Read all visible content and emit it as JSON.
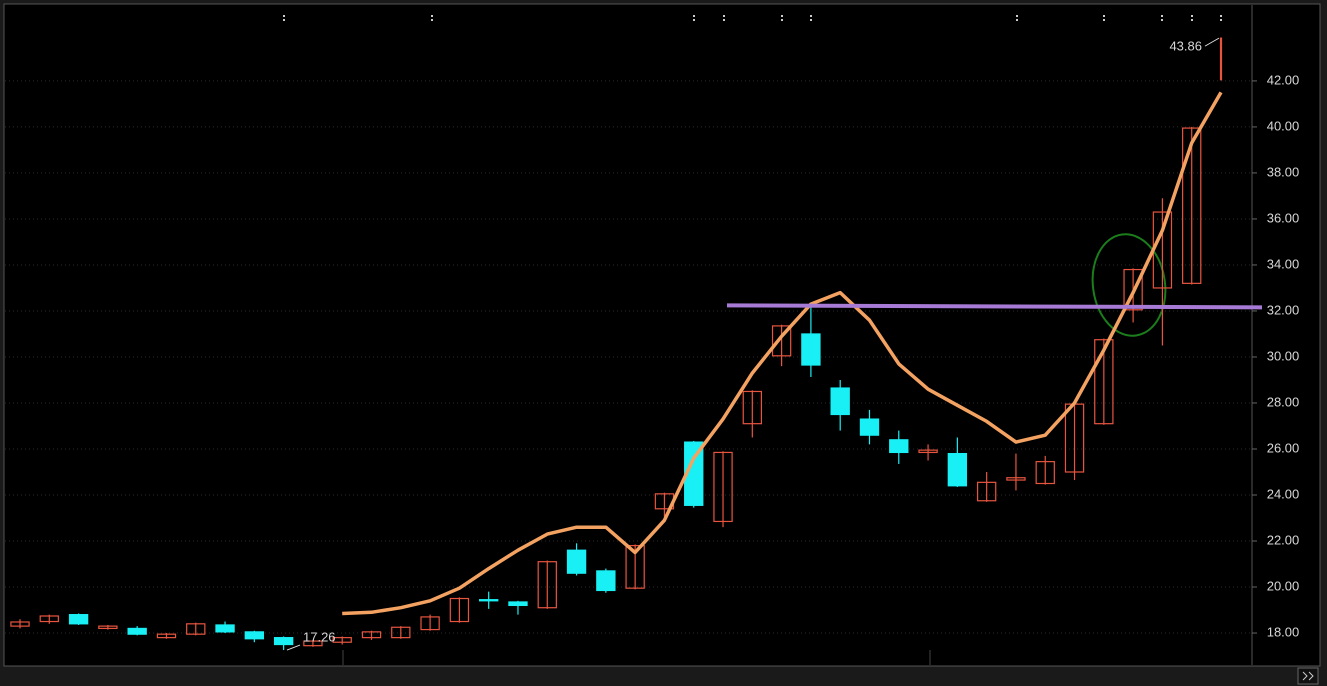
{
  "chart_data": {
    "type": "candlestick",
    "categories": [
      null,
      null,
      null,
      null,
      null,
      null,
      null,
      null,
      null,
      null,
      null,
      null,
      null,
      null,
      null,
      null,
      null,
      null,
      null,
      null,
      null,
      null,
      null,
      null,
      null,
      null,
      null,
      null,
      null,
      null,
      null,
      null,
      null,
      null,
      null,
      null,
      null,
      null,
      null,
      null,
      null,
      null
    ],
    "open": [
      18.3,
      18.5,
      18.8,
      18.2,
      18.2,
      17.8,
      17.95,
      18.35,
      18.05,
      17.8,
      17.45,
      17.6,
      17.8,
      17.8,
      18.15,
      18.5,
      19.45,
      19.35,
      19.1,
      21.6,
      20.7,
      19.95,
      23.4,
      26.3,
      22.85,
      27.1,
      30.05,
      31.0,
      28.65,
      27.3,
      26.4,
      25.85,
      25.8,
      23.75,
      24.65,
      24.5,
      25.0,
      27.1,
      32.05,
      33.0,
      33.2,
      42.05
    ],
    "close": [
      18.48,
      18.74,
      18.4,
      18.3,
      17.95,
      17.95,
      18.4,
      18.05,
      17.75,
      17.5,
      17.65,
      17.8,
      18.05,
      18.25,
      18.7,
      19.5,
      19.4,
      19.2,
      21.1,
      20.6,
      19.85,
      21.8,
      24.05,
      23.55,
      25.85,
      28.5,
      31.35,
      29.65,
      27.5,
      26.6,
      25.85,
      25.95,
      24.4,
      24.55,
      24.75,
      25.45,
      27.95,
      30.75,
      33.8,
      36.3,
      39.95,
      43.86
    ],
    "high": [
      18.6,
      18.8,
      18.85,
      18.35,
      18.3,
      18.0,
      18.45,
      18.5,
      18.1,
      17.85,
      17.7,
      17.85,
      18.1,
      18.3,
      18.8,
      19.55,
      19.8,
      19.4,
      21.15,
      21.9,
      20.8,
      21.85,
      24.1,
      26.35,
      25.9,
      28.55,
      31.4,
      32.26,
      29.0,
      27.7,
      26.8,
      26.2,
      26.5,
      25.0,
      25.8,
      25.7,
      28.0,
      30.8,
      33.85,
      36.9,
      40.0,
      43.86
    ],
    "low": [
      18.2,
      18.4,
      18.35,
      18.15,
      17.9,
      17.75,
      17.9,
      18.0,
      17.6,
      17.26,
      17.4,
      17.5,
      17.7,
      17.75,
      18.1,
      18.45,
      19.05,
      18.8,
      19.05,
      20.5,
      19.75,
      19.9,
      23.05,
      23.45,
      22.6,
      26.5,
      29.6,
      29.13,
      26.8,
      26.2,
      25.35,
      25.5,
      24.35,
      23.7,
      24.2,
      24.45,
      24.65,
      27.05,
      31.5,
      30.5,
      33.15,
      42.05
    ],
    "up_color": "#e8553f",
    "down_color": "#19f0f5",
    "ma": {
      "color": "#f4a261",
      "values": [
        null,
        null,
        null,
        null,
        null,
        null,
        null,
        null,
        null,
        null,
        null,
        18.85,
        18.9,
        19.1,
        19.4,
        19.95,
        20.8,
        21.6,
        22.3,
        22.6,
        22.6,
        21.5,
        22.9,
        25.6,
        27.3,
        29.3,
        30.9,
        32.3,
        32.8,
        31.6,
        29.7,
        28.6,
        27.9,
        27.2,
        26.3,
        26.6,
        28.0,
        30.3,
        32.8,
        35.5,
        39.3,
        41.5
      ]
    },
    "hline": {
      "value": 32.2,
      "color": "#a77ad6"
    },
    "ylim": [
      16.61,
      45.3
    ],
    "yticks": [
      {
        "value": 18,
        "label": "18.00"
      },
      {
        "value": 20,
        "label": "20.00"
      },
      {
        "value": 22,
        "label": "22.00"
      },
      {
        "value": 24,
        "label": "24.00"
      },
      {
        "value": 26,
        "label": "26.00"
      },
      {
        "value": 28,
        "label": "28.00"
      },
      {
        "value": 30,
        "label": "30.00"
      },
      {
        "value": 32,
        "label": "32.00"
      },
      {
        "value": 34,
        "label": "34.00"
      },
      {
        "value": 36,
        "label": "36.00"
      },
      {
        "value": 38,
        "label": "38.00"
      },
      {
        "value": 40,
        "label": "40.00"
      },
      {
        "value": 42,
        "label": "42.00"
      }
    ],
    "grid": true,
    "max_label": 43.86,
    "min_label": 17.26
  }
}
